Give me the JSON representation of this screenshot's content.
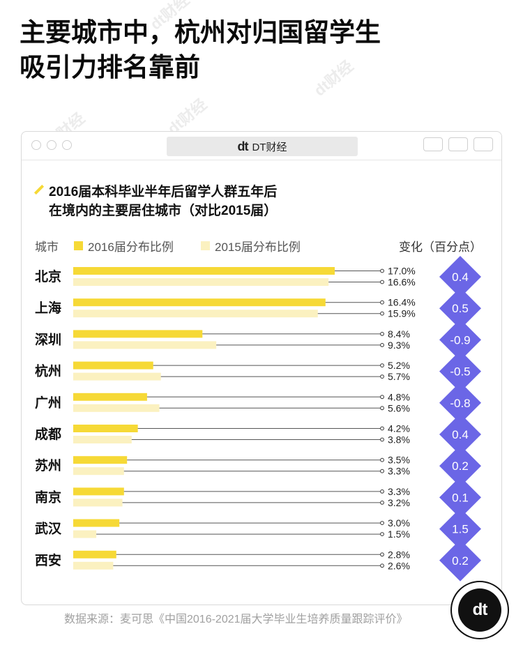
{
  "headline": {
    "line1": "主要城市中，杭州对归国留学生",
    "line2": "吸引力排名靠前"
  },
  "window": {
    "tab_logo": "dt",
    "tab_title": "DT财经"
  },
  "watermark_text": "dt财经",
  "corner_logo_text": "dt",
  "source": "数据来源：麦可思《中国2016-2021届大学毕业生培养质量跟踪评价》",
  "colors": {
    "series_2016": "#f6d936",
    "series_2015": "#fbf1c0",
    "diamond": "#6b66e6",
    "leader": "#555555"
  },
  "chart_data": {
    "type": "bar",
    "orientation": "horizontal",
    "title_line1": "2016届本科毕业半年后留学人群五年后",
    "title_line2": "在境内的主要居住城市（对比2015届）",
    "category_header": "城市",
    "change_header": "变化（百分点）",
    "categories": [
      "北京",
      "上海",
      "深圳",
      "杭州",
      "广州",
      "成都",
      "苏州",
      "南京",
      "武汉",
      "西安"
    ],
    "series": [
      {
        "name": "2016届分布比例",
        "values": [
          17.0,
          16.4,
          8.4,
          5.2,
          4.8,
          4.2,
          3.5,
          3.3,
          3.0,
          2.8
        ],
        "labels": [
          "17.0%",
          "16.4%",
          "8.4%",
          "5.2%",
          "4.8%",
          "4.2%",
          "3.5%",
          "3.3%",
          "3.0%",
          "2.8%"
        ]
      },
      {
        "name": "2015届分布比例",
        "values": [
          16.6,
          15.9,
          9.3,
          5.7,
          5.6,
          3.8,
          3.3,
          3.2,
          1.5,
          2.6
        ],
        "labels": [
          "16.6%",
          "15.9%",
          "9.3%",
          "5.7%",
          "5.6%",
          "3.8%",
          "3.3%",
          "3.2%",
          "1.5%",
          "2.6%"
        ]
      }
    ],
    "change": [
      0.4,
      0.5,
      -0.9,
      -0.5,
      -0.8,
      0.4,
      0.2,
      0.1,
      1.5,
      0.2
    ],
    "change_labels": [
      "0.4",
      "0.5",
      "-0.9",
      "-0.5",
      "-0.8",
      "0.4",
      "0.2",
      "0.1",
      "1.5",
      "0.2"
    ],
    "xlim": [
      0,
      17.0
    ]
  }
}
